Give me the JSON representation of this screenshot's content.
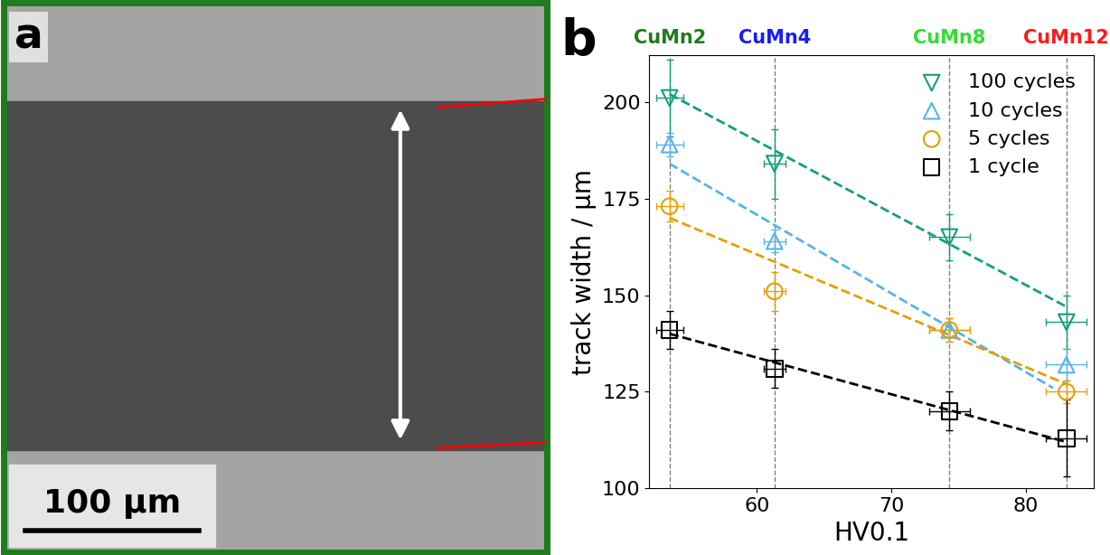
{
  "panel_a": {
    "label": "a",
    "scale_bar": "100 µm"
  },
  "chart_data": {
    "type": "scatter",
    "label": "b",
    "x_label": "HV0.1",
    "y_label": "track width / µm",
    "x": [
      53.5,
      61.3,
      74.3,
      83.0
    ],
    "xlim": [
      52,
      85
    ],
    "xticks": [
      60,
      70,
      80
    ],
    "ylim": [
      100,
      212
    ],
    "yticks": [
      100,
      125,
      150,
      175,
      200
    ],
    "legend": "upper right",
    "annotations": [
      {
        "text": "CuMn2",
        "x": 53.5,
        "color": "#1e7b1e"
      },
      {
        "text": "CuMn4",
        "x": 61.3,
        "color": "#1a1aff"
      },
      {
        "text": "CuMn8",
        "x": 74.3,
        "color": "#33dd33"
      },
      {
        "text": "CuMn12",
        "x": 83.0,
        "color": "#ff1a1a"
      }
    ],
    "series": [
      {
        "name": "100 cycles",
        "color": "#14a07a",
        "marker": "v",
        "values": [
          201,
          184,
          165,
          143
        ],
        "y_error": [
          10,
          9,
          6,
          7
        ],
        "x_error": [
          1.0,
          0.8,
          1.5,
          1.5
        ],
        "fit": {
          "x": [
            53.5,
            83.0
          ],
          "values": [
            202,
            147
          ]
        }
      },
      {
        "name": "10 cycles",
        "color": "#56b4e9",
        "marker": "^",
        "values": [
          189,
          164,
          141,
          132
        ],
        "y_error": [
          3,
          3,
          3,
          4
        ],
        "x_error": [
          1.0,
          0.8,
          1.5,
          1.5
        ],
        "fit": {
          "x": [
            53.5,
            82.0
          ],
          "values": [
            184,
            126
          ]
        }
      },
      {
        "name": "5 cycles",
        "color": "#e69f00",
        "marker": "o",
        "values": [
          173,
          151,
          141,
          125
        ],
        "y_error": [
          4,
          5,
          3,
          3
        ],
        "x_error": [
          1.0,
          0.8,
          1.5,
          1.5
        ],
        "fit": {
          "x": [
            53.5,
            83.0
          ],
          "values": [
            170,
            127
          ]
        }
      },
      {
        "name": "1 cycle",
        "color": "#000000",
        "marker": "s",
        "values": [
          141,
          131,
          120,
          113
        ],
        "y_error": [
          5,
          5,
          5,
          10
        ],
        "x_error": [
          1.0,
          0.8,
          1.5,
          1.5
        ],
        "fit": {
          "x": [
            53.5,
            83.0
          ],
          "values": [
            140,
            112
          ]
        }
      }
    ]
  }
}
